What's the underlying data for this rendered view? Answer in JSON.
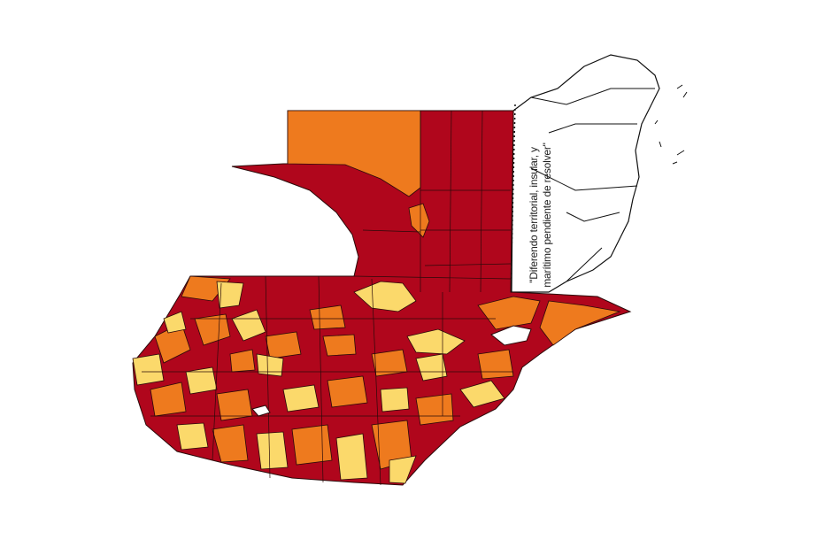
{
  "map": {
    "annotation": "\"Diferendo territorial, insular, y marítimo pendiente de resolver\"",
    "colors": {
      "high": "#b0061c",
      "medium": "#ee7a1e",
      "low": "#fbd96b",
      "border": "#2a0a0a",
      "neighbor_fill": "#ffffff"
    }
  }
}
